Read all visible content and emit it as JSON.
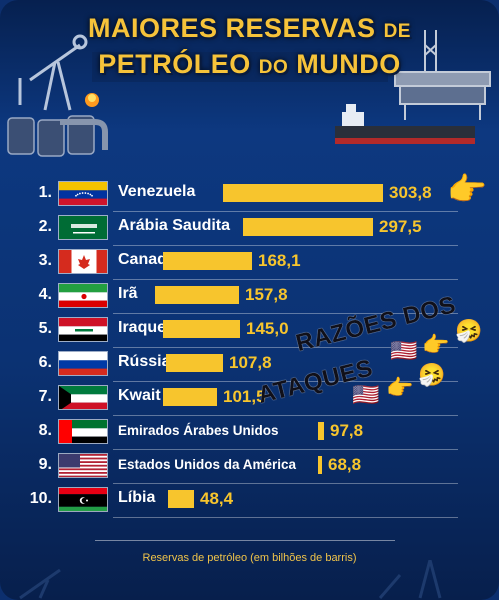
{
  "title": {
    "line1": "MAIORES RESERVAS",
    "de": "DE",
    "line2_a": "PETRÓLEO",
    "do": "DO",
    "line2_b": "MUNDO"
  },
  "rows": [
    {
      "rank": "1.",
      "country": "Venezuela",
      "value": "303,8",
      "reserve": 303.8,
      "flag": "venezuela"
    },
    {
      "rank": "2.",
      "country": "Arábia Saudita",
      "value": "297,5",
      "reserve": 297.5,
      "flag": "saudi-arabia"
    },
    {
      "rank": "3.",
      "country": "Canadá",
      "value": "168,1",
      "reserve": 168.1,
      "flag": "canada"
    },
    {
      "rank": "4.",
      "country": "Irã",
      "value": "157,8",
      "reserve": 157.8,
      "flag": "iran"
    },
    {
      "rank": "5.",
      "country": "Iraque",
      "value": "145,0",
      "reserve": 145.0,
      "flag": "iraq"
    },
    {
      "rank": "6.",
      "country": "Rússia",
      "value": "107,8",
      "reserve": 107.8,
      "flag": "russia"
    },
    {
      "rank": "7.",
      "country": "Kwait",
      "value": "101,5",
      "reserve": 101.5,
      "flag": "kuwait"
    },
    {
      "rank": "8.",
      "country": "Emirados Árabes Unidos",
      "value": "97,8",
      "reserve": 97.8,
      "flag": "uae"
    },
    {
      "rank": "9.",
      "country": "Estados Unidos da América",
      "value": "68,8",
      "reserve": 68.8,
      "flag": "usa"
    },
    {
      "rank": "10.",
      "country": "Líbia",
      "value": "48,4",
      "reserve": 48.4,
      "flag": "libya"
    }
  ],
  "footer": "Reservas de petróleo (em bilhões de barris)",
  "overlay": {
    "line1": "RAZÕES DOS",
    "line2": "ATAQUES"
  },
  "colors": {
    "accent": "#f7c52d",
    "background": "#0c2f6e"
  }
}
